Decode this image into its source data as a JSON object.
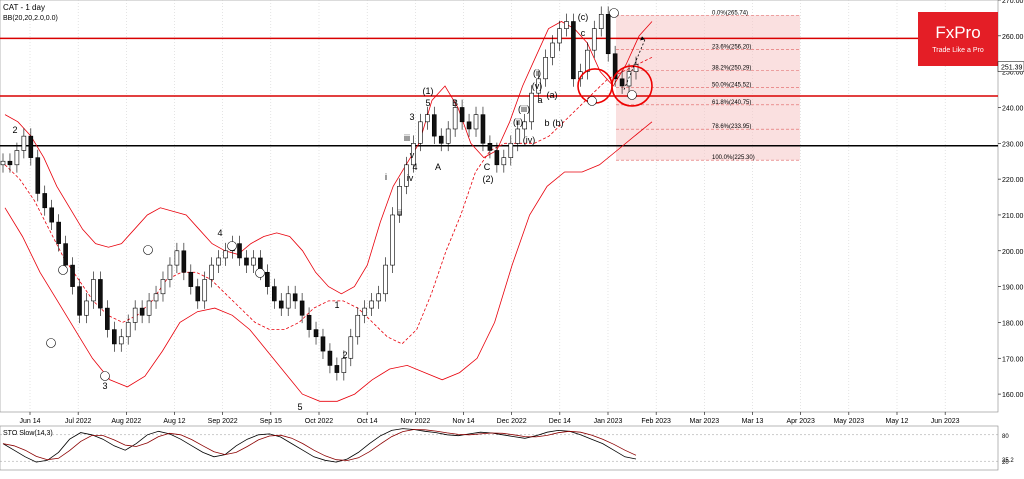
{
  "header": {
    "symbol_line": "CAT - 1 day",
    "indicator_line": "BB(20,20,2.0,0.0)"
  },
  "brand": {
    "logo_text": "FxPro",
    "tagline": "Trade Like a Pro",
    "color": "#e41e26"
  },
  "sto": {
    "label": "STO Slow(14,3)",
    "levels": [
      "80",
      "20"
    ],
    "latest_value": "25.2"
  },
  "colors": {
    "bull": "#0a8a2a",
    "bear": "#111111",
    "band": "#e8000b",
    "resistance": "#d90000",
    "support": "#000000",
    "fib_zone": "#f5c6c6",
    "sto_main": "#000000",
    "sto_signal": "#8b0000"
  },
  "chart_data": {
    "type": "candlestick",
    "title": "CAT - 1 day",
    "ylim": [
      155,
      270
    ],
    "y_ticks": [
      "270.00",
      "260.00",
      "250.00",
      "240.00",
      "230.00",
      "220.00",
      "210.00",
      "200.00",
      "190.00",
      "180.00",
      "170.00",
      "160.00"
    ],
    "x_ticks": [
      "Jun 14",
      "Jul 2022",
      "Aug 2022",
      "Aug 12",
      "Sep 2022",
      "Sep 15",
      "Oct 2022",
      "Oct 14",
      "Nov 2022",
      "Nov 14",
      "Dec 2022",
      "Dec 14",
      "Jan 2023",
      "Feb 2023",
      "Mar 2023",
      "Mar 13",
      "Apr 2023",
      "May 2023",
      "May 12",
      "Jun 2023",
      "Jun 14"
    ],
    "last_price_label": "251.39",
    "horizontal_levels": [
      {
        "value": 259.3,
        "role": "resistance"
      },
      {
        "value": 243.2,
        "role": "resistance"
      },
      {
        "value": 229.3,
        "role": "support"
      }
    ],
    "fibonacci": [
      {
        "label": "0.0%(265.74)",
        "value": 265.74
      },
      {
        "label": "23.6%(256.20)",
        "value": 256.2
      },
      {
        "label": "38.2%(250.29)",
        "value": 250.29
      },
      {
        "label": "50.0%(245.52)",
        "value": 245.52
      },
      {
        "label": "61.8%(240.75)",
        "value": 240.75
      },
      {
        "label": "78.6%(233.95)",
        "value": 233.95
      },
      {
        "label": "100.0%(225.30)",
        "value": 225.3
      }
    ],
    "closes": [
      225,
      224,
      228,
      232,
      226,
      216,
      212,
      208,
      202,
      196,
      190,
      182,
      186,
      192,
      184,
      178,
      174,
      176,
      180,
      184,
      182,
      186,
      188,
      192,
      196,
      200,
      194,
      190,
      186,
      192,
      196,
      198,
      200,
      202,
      198,
      196,
      198,
      194,
      190,
      186,
      184,
      188,
      186,
      182,
      178,
      176,
      172,
      168,
      166,
      170,
      176,
      182,
      184,
      186,
      188,
      196,
      210,
      218,
      224,
      230,
      236,
      238,
      232,
      230,
      234,
      240,
      236,
      234,
      238,
      230,
      228,
      224,
      226,
      230,
      234,
      236,
      244,
      248,
      254,
      258,
      262,
      264,
      248,
      250,
      256,
      262,
      266,
      255,
      248,
      246,
      250,
      252
    ],
    "upper_band": [
      238,
      236,
      232,
      226,
      218,
      212,
      206,
      202,
      201,
      202,
      206,
      210,
      212,
      211,
      210,
      206,
      202,
      200,
      199,
      202,
      204,
      205,
      204,
      200,
      194,
      190,
      188,
      190,
      196,
      208,
      218,
      224,
      230,
      242,
      246,
      240,
      230,
      226,
      228,
      236,
      246,
      254,
      262,
      264,
      262,
      258,
      250,
      246,
      252,
      260,
      264
    ],
    "middle_band": [
      224,
      220,
      214,
      206,
      198,
      192,
      186,
      182,
      180,
      182,
      186,
      192,
      194,
      194,
      192,
      188,
      184,
      180,
      178,
      178,
      180,
      184,
      186,
      186,
      184,
      180,
      176,
      174,
      178,
      188,
      200,
      210,
      222,
      228,
      230,
      230,
      230,
      232,
      236,
      240,
      244,
      248,
      250,
      252,
      254
    ],
    "lower_band": [
      212,
      204,
      194,
      186,
      178,
      170,
      164,
      162,
      165,
      172,
      180,
      183,
      184,
      182,
      178,
      172,
      166,
      160,
      158,
      158,
      160,
      164,
      167,
      168,
      166,
      164,
      166,
      170,
      180,
      196,
      210,
      218,
      222,
      222,
      224,
      228,
      232,
      236
    ],
    "sto_main": [
      60,
      45,
      30,
      18,
      22,
      40,
      70,
      85,
      80,
      70,
      55,
      45,
      60,
      80,
      88,
      82,
      70,
      55,
      40,
      30,
      35,
      55,
      70,
      80,
      82,
      75,
      60,
      45,
      30,
      22,
      18,
      25,
      40,
      60,
      78,
      90,
      94,
      92,
      88,
      85,
      80,
      78,
      82,
      86,
      84,
      80,
      76,
      72,
      78,
      86,
      90,
      88,
      80,
      70,
      60,
      45,
      30,
      25
    ],
    "wave_labels": [
      "2",
      "3",
      "4",
      "5",
      "1",
      "2",
      "(1)",
      "3",
      "4",
      "5",
      "A",
      "B",
      "C",
      "(2)",
      "i",
      "ii",
      "iii",
      "iv",
      "v",
      "a",
      "b",
      "c",
      "(i)",
      "(ii)",
      "(iii)",
      "(iv)",
      "(v)",
      "(a)",
      "(b)",
      "(c)"
    ]
  }
}
